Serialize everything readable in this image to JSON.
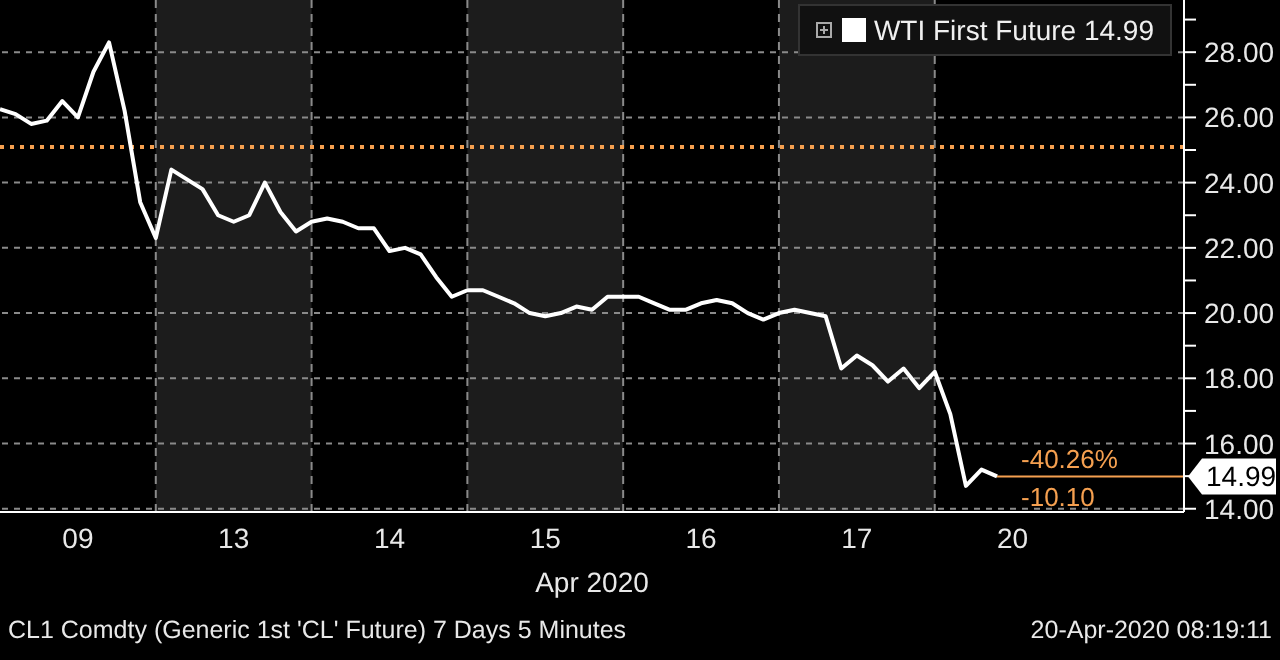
{
  "chart_data": {
    "type": "line",
    "xlabel": "Apr 2020",
    "categories": [
      null,
      null,
      null,
      null,
      null,
      "09",
      null,
      null,
      null,
      null,
      null,
      null,
      null,
      null,
      null,
      "13",
      null,
      null,
      null,
      null,
      null,
      null,
      null,
      null,
      null,
      "14",
      null,
      null,
      null,
      null,
      null,
      null,
      null,
      null,
      null,
      "15",
      null,
      null,
      null,
      null,
      null,
      null,
      null,
      null,
      null,
      "16",
      null,
      null,
      null,
      null,
      null,
      null,
      null,
      null,
      null,
      "17",
      null,
      null,
      null,
      null,
      null,
      null,
      null,
      null,
      null,
      "20",
      null,
      null,
      null,
      null,
      null,
      null,
      null,
      null,
      null,
      null,
      null
    ],
    "series": [
      {
        "name": "WTI First Future 14.99",
        "color": "#ffffff",
        "values": [
          26.25,
          26.1,
          25.8,
          25.9,
          26.5,
          26.0,
          27.4,
          28.3,
          26.2,
          23.4,
          22.3,
          24.4,
          24.1,
          23.8,
          23.0,
          22.8,
          23.0,
          24.0,
          23.1,
          22.5,
          22.8,
          22.9,
          22.8,
          22.6,
          22.6,
          21.9,
          22.0,
          21.8,
          21.1,
          20.5,
          20.7,
          20.7,
          20.5,
          20.3,
          20.0,
          19.9,
          20.0,
          20.2,
          20.1,
          20.5,
          20.5,
          20.5,
          20.3,
          20.1,
          20.1,
          20.3,
          20.4,
          20.3,
          20.0,
          19.8,
          20.0,
          20.1,
          20.0,
          19.9,
          18.3,
          18.7,
          18.4,
          17.9,
          18.3,
          17.7,
          18.2,
          16.9,
          14.7,
          15.2,
          14.99,
          null,
          null,
          null,
          null,
          null,
          null,
          null,
          null,
          null,
          null,
          null,
          null
        ]
      }
    ],
    "ylim": [
      13.9,
      29.6
    ],
    "yticks": [
      {
        "value": 14,
        "label": "14.00"
      },
      {
        "value": 15,
        "label": null
      },
      {
        "value": 16,
        "label": "16.00"
      },
      {
        "value": 17,
        "label": null
      },
      {
        "value": 18,
        "label": "18.00"
      },
      {
        "value": 19,
        "label": null
      },
      {
        "value": 20,
        "label": "20.00"
      },
      {
        "value": 21,
        "label": null
      },
      {
        "value": 22,
        "label": "22.00"
      },
      {
        "value": 23,
        "label": null
      },
      {
        "value": 24,
        "label": "24.00"
      },
      {
        "value": 25,
        "label": null
      },
      {
        "value": 26,
        "label": "26.00"
      },
      {
        "value": 27,
        "label": null
      },
      {
        "value": 28,
        "label": "28.00"
      },
      {
        "value": 29,
        "label": null
      }
    ],
    "ref_lines": [
      {
        "axis": "y",
        "value": 25.09,
        "color": "#f5a050",
        "line_style": "dotted"
      },
      {
        "axis": "y",
        "value": 14.99,
        "label": "14.99",
        "color": "#f5a050",
        "line_style": "solid"
      }
    ],
    "annotations": [
      "-40.26%",
      "-10.10",
      "CL1 Comdty (Generic 1st 'CL' Future) 7 Days 5 Minutes",
      "20-Apr-2020 08:19:11"
    ],
    "grid": true,
    "legend": "top right",
    "marker": "none",
    "line_style": "solid"
  }
}
